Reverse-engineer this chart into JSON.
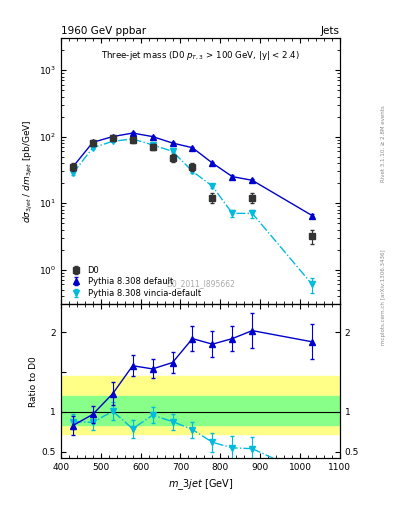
{
  "title_main": "1960 GeV ppbar",
  "title_right": "Jets",
  "ylabel_top": "dσ_3jet / dm_3jet [pb/GeV]",
  "ylabel_bottom": "Ratio to D0",
  "xlabel": "m_3jet [GeV]",
  "watermark": "D0_2011_I895662",
  "right_label": "Rivet 3.1.10, ≥ 2.8M events",
  "right_label2": "mcplots.cern.ch [arXiv:1306.3436]",
  "d0_x": [
    430,
    480,
    530,
    580,
    630,
    680,
    730,
    780,
    880,
    1030
  ],
  "d0_y": [
    35,
    80,
    95,
    90,
    70,
    48,
    35,
    12,
    12,
    3.2
  ],
  "d0_yerr": [
    5,
    8,
    10,
    10,
    8,
    6,
    5,
    2,
    2,
    0.8
  ],
  "py_default_x": [
    430,
    480,
    530,
    580,
    630,
    680,
    730,
    780,
    830,
    880,
    1030
  ],
  "py_default_y": [
    35,
    82,
    100,
    113,
    100,
    80,
    68,
    40,
    25,
    22,
    6.5
  ],
  "py_default_yerr": [
    1.5,
    2,
    3,
    3,
    2.5,
    2,
    2,
    1.5,
    1,
    1,
    0.4
  ],
  "py_vincia_x": [
    430,
    480,
    530,
    580,
    630,
    680,
    730,
    780,
    830,
    880,
    1030
  ],
  "py_vincia_y": [
    28,
    68,
    85,
    92,
    75,
    60,
    30,
    18,
    7,
    7,
    0.6
  ],
  "py_vincia_yerr": [
    1.5,
    2,
    2.5,
    2.5,
    2,
    1.5,
    1.5,
    1,
    0.8,
    1,
    0.15
  ],
  "ratio_default_x": [
    430,
    480,
    530,
    580,
    630,
    680,
    730,
    780,
    830,
    880,
    1030
  ],
  "ratio_default_y": [
    0.83,
    0.97,
    1.23,
    1.58,
    1.54,
    1.62,
    1.92,
    1.85,
    1.92,
    2.02,
    1.88
  ],
  "ratio_default_yerr": [
    0.12,
    0.11,
    0.14,
    0.13,
    0.12,
    0.13,
    0.16,
    0.16,
    0.16,
    0.22,
    0.22
  ],
  "ratio_vincia_x": [
    430,
    480,
    530,
    580,
    630,
    680,
    730,
    780,
    830,
    880
  ],
  "ratio_vincia_y": [
    0.88,
    0.87,
    1.01,
    0.79,
    0.96,
    0.88,
    0.78,
    0.62,
    0.55,
    0.54
  ],
  "ratio_vincia_yerr": [
    0.09,
    0.09,
    0.11,
    0.11,
    0.1,
    0.1,
    0.1,
    0.12,
    0.15,
    0.15
  ],
  "band_yellow_lo": 0.72,
  "band_yellow_hi": 1.45,
  "band_green_lo": 0.84,
  "band_green_hi": 1.2,
  "xlim": [
    400,
    1100
  ],
  "ylim_top_lo": 0.3,
  "ylim_top_hi": 3000,
  "ylim_bottom_lo": 0.42,
  "ylim_bottom_hi": 2.35,
  "color_d0": "#333333",
  "color_default": "#0000cc",
  "color_vincia": "#00bbdd",
  "color_yellow": "#ffff88",
  "color_green": "#88ff88"
}
